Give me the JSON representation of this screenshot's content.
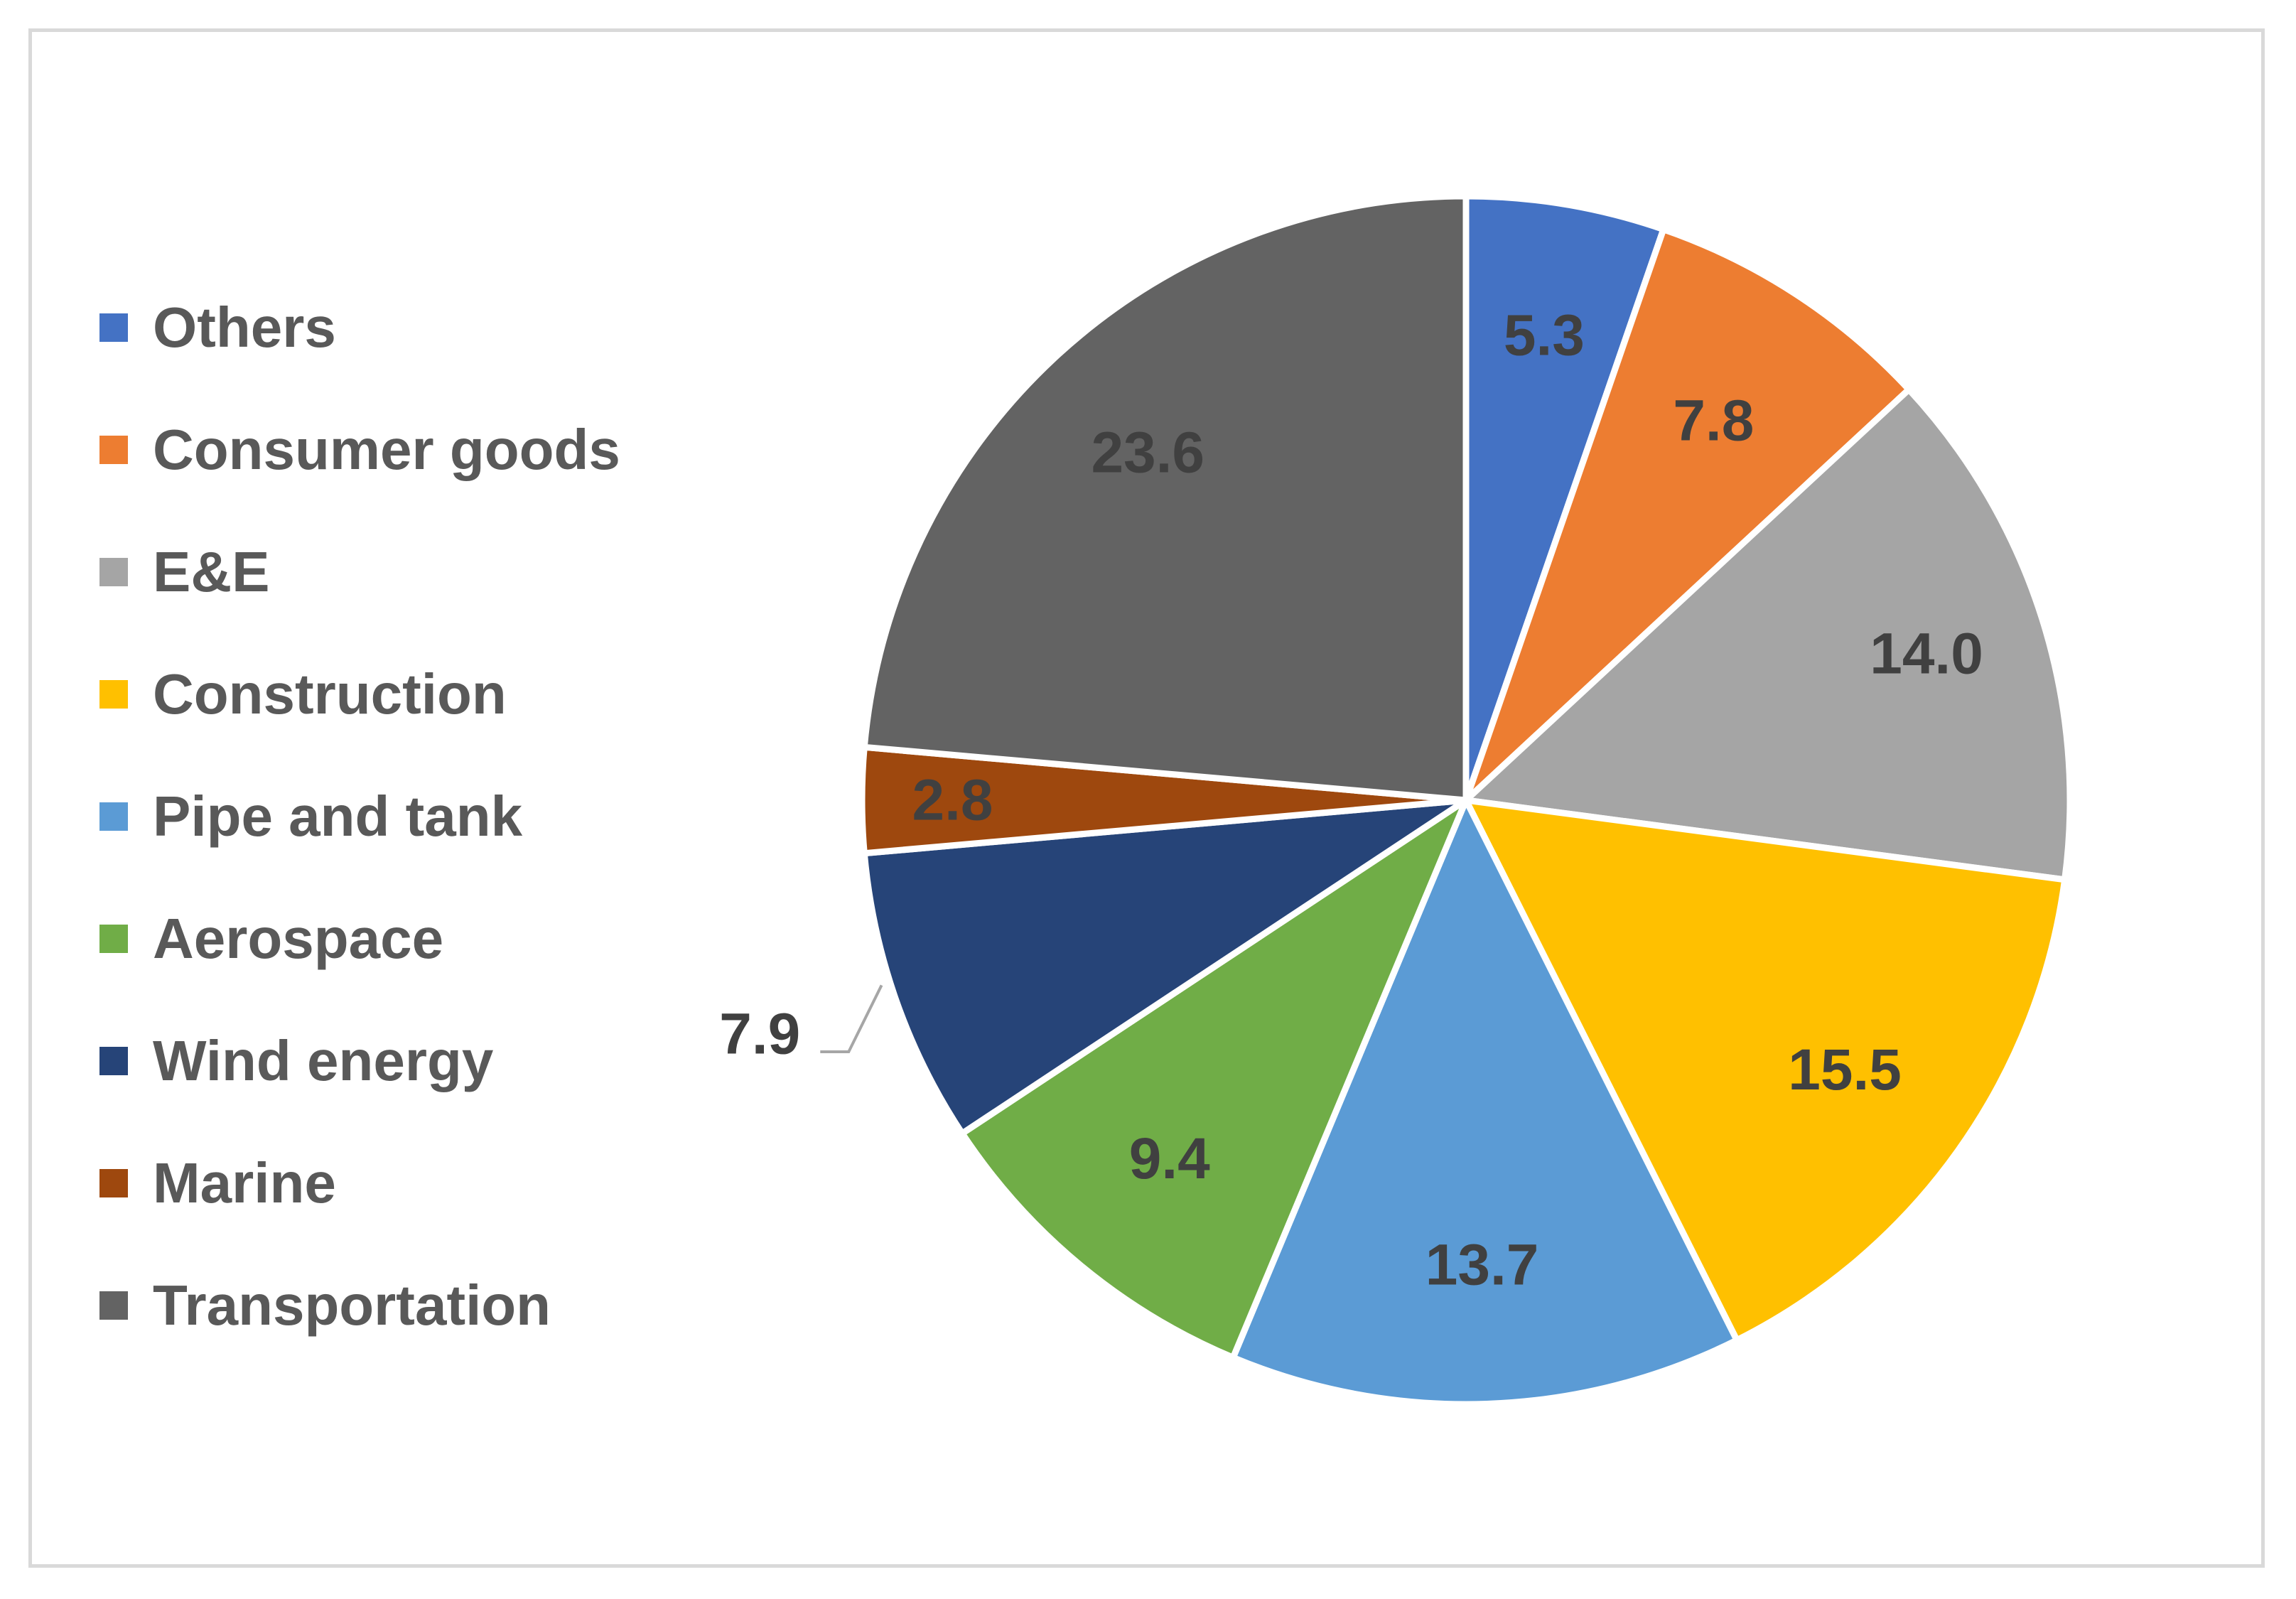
{
  "chart_data": {
    "type": "pie",
    "title": "",
    "categories": [
      "Others",
      "Consumer goods",
      "E&E",
      "Construction",
      "Pipe and tank",
      "Aerospace",
      "Wind energy",
      "Marine",
      "Transportation"
    ],
    "values": [
      5.3,
      7.8,
      14.0,
      15.5,
      13.7,
      9.4,
      7.9,
      2.8,
      23.6
    ],
    "value_labels": [
      "5.3",
      "7.8",
      "14.0",
      "15.5",
      "13.7",
      "9.4",
      "7.9",
      "2.8",
      "23.6"
    ],
    "colors": [
      "#4472C4",
      "#ED7D31",
      "#A5A5A5",
      "#FFC000",
      "#5B9BD5",
      "#70AD47",
      "#264478",
      "#9E480E",
      "#636363"
    ],
    "legend_position": "left",
    "start_angle_deg": 0,
    "direction": "clockwise"
  }
}
